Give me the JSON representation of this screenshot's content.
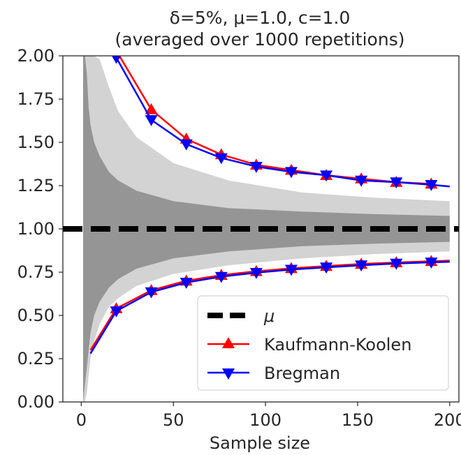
{
  "chart_data": {
    "type": "line",
    "title_line1": "δ=5%, μ=1.0, c=1.0",
    "title_line2": "(averaged over 1000 repetitions)",
    "xlabel": "Sample size",
    "ylabel": "",
    "xlim": [
      -10,
      205
    ],
    "ylim": [
      0.0,
      2.0
    ],
    "x_ticks": [
      0,
      50,
      100,
      150,
      200
    ],
    "y_ticks": [
      0.0,
      0.25,
      0.5,
      0.75,
      1.0,
      1.25,
      1.5,
      1.75,
      2.0
    ],
    "x_tick_labels": [
      "0",
      "50",
      "100",
      "150",
      "200"
    ],
    "y_tick_labels": [
      "0.00",
      "0.25",
      "0.50",
      "0.75",
      "1.00",
      "1.25",
      "1.50",
      "1.75",
      "2.00"
    ],
    "grid": false,
    "legend_position": "bottom-right",
    "mu": 1.0,
    "series": [
      {
        "name": "μ",
        "style": "dashed",
        "color": "#000000",
        "x": [
          -10,
          205
        ],
        "y": [
          1.0,
          1.0
        ]
      },
      {
        "name": "Kaufmann-Koolen",
        "color": "#ff0000",
        "marker": "triangle-up",
        "upper": {
          "x": [
            19,
            38,
            57,
            76,
            95,
            114,
            133,
            152,
            171,
            190
          ],
          "y": [
            2.03,
            1.69,
            1.52,
            1.43,
            1.37,
            1.34,
            1.31,
            1.29,
            1.27,
            1.26
          ]
        },
        "lower": {
          "x": [
            5,
            19,
            38,
            57,
            76,
            95,
            114,
            133,
            152,
            171,
            190,
            200
          ],
          "y": [
            0.3,
            0.54,
            0.645,
            0.7,
            0.733,
            0.755,
            0.772,
            0.785,
            0.797,
            0.806,
            0.813,
            0.817
          ]
        }
      },
      {
        "name": "Bregman",
        "color": "#0000ff",
        "marker": "triangle-down",
        "upper": {
          "x": [
            19,
            38,
            57,
            76,
            95,
            114,
            133,
            152,
            171,
            190,
            200
          ],
          "y": [
            1.99,
            1.63,
            1.49,
            1.41,
            1.36,
            1.33,
            1.31,
            1.28,
            1.27,
            1.255,
            1.245
          ]
        },
        "lower": {
          "x": [
            5,
            19,
            38,
            57,
            76,
            95,
            114,
            133,
            152,
            171,
            190,
            200
          ],
          "y": [
            0.28,
            0.525,
            0.635,
            0.69,
            0.724,
            0.747,
            0.765,
            0.778,
            0.79,
            0.8,
            0.807,
            0.81
          ]
        }
      }
    ],
    "background_band": {
      "color": "#808080",
      "x": [
        1,
        2,
        3,
        4,
        5,
        7,
        10,
        15,
        20,
        30,
        50,
        80,
        120,
        160,
        200
      ],
      "upper": [
        2.0,
        2.0,
        2.0,
        2.0,
        2.0,
        2.0,
        1.98,
        1.82,
        1.68,
        1.53,
        1.38,
        1.28,
        1.21,
        1.18,
        1.16
      ],
      "lower": [
        0.0,
        0.0,
        0.05,
        0.15,
        0.25,
        0.35,
        0.45,
        0.55,
        0.6,
        0.67,
        0.74,
        0.79,
        0.83,
        0.855,
        0.87
      ],
      "core_upper": [
        2.0,
        2.0,
        1.9,
        1.7,
        1.6,
        1.5,
        1.42,
        1.33,
        1.28,
        1.22,
        1.16,
        1.12,
        1.1,
        1.085,
        1.075
      ],
      "core_lower": [
        0.0,
        0.1,
        0.2,
        0.3,
        0.4,
        0.5,
        0.58,
        0.66,
        0.71,
        0.77,
        0.83,
        0.87,
        0.9,
        0.915,
        0.925
      ]
    }
  }
}
